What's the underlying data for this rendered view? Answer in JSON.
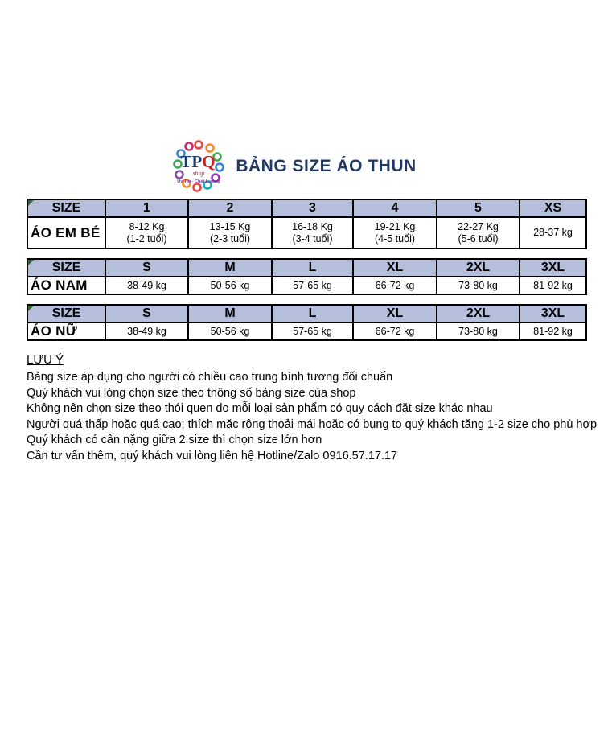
{
  "logo": {
    "brand_tp": "TP",
    "brand_q": "Q",
    "sub": "shop",
    "tagline": "Uy Tín - Chất Lượng"
  },
  "title": "BẢNG SIZE ÁO THUN",
  "tables": [
    {
      "header": [
        "SIZE",
        "1",
        "2",
        "3",
        "4",
        "5",
        "XS"
      ],
      "row_label": "ÁO EM BÉ",
      "cells": [
        [
          "8-12 Kg",
          "(1-2 tuổi)"
        ],
        [
          "13-15 Kg",
          "(2-3 tuổi)"
        ],
        [
          "16-18 Kg",
          "(3-4 tuổi)"
        ],
        [
          "19-21 Kg",
          "(4-5 tuổi)"
        ],
        [
          "22-27 Kg",
          "(5-6 tuổi)"
        ],
        [
          "28-37 kg"
        ]
      ]
    },
    {
      "header": [
        "SIZE",
        "S",
        "M",
        "L",
        "XL",
        "2XL",
        "3XL"
      ],
      "row_label": "ÁO NAM",
      "cells": [
        [
          "38-49 kg"
        ],
        [
          "50-56 kg"
        ],
        [
          "57-65 kg"
        ],
        [
          "66-72 kg"
        ],
        [
          "73-80 kg"
        ],
        [
          "81-92 kg"
        ]
      ]
    },
    {
      "header": [
        "SIZE",
        "S",
        "M",
        "L",
        "XL",
        "2XL",
        "3XL"
      ],
      "row_label": "ÁO NỮ",
      "cells": [
        [
          "38-49 kg"
        ],
        [
          "50-56 kg"
        ],
        [
          "57-65 kg"
        ],
        [
          "66-72 kg"
        ],
        [
          "73-80 kg"
        ],
        [
          "81-92 kg"
        ]
      ]
    }
  ],
  "notes": {
    "heading": "LƯU Ý",
    "lines": [
      "Bảng size áp dụng cho người có chiều cao trung bình tương đối chuẩn",
      "Quý khách vui lòng chọn size theo thông số bảng size của shop",
      "Không nên chọn size theo thói quen do mỗi loại sản phẩm có quy cách đặt size khác nhau",
      "Người quá thấp hoặc quá cao; thích mặc rộng thoải mái hoặc có bụng to quý khách tăng 1-2 size cho phù hợp",
      "Quý khách có cân nặng giữa 2 size thì chọn size lớn hơn",
      "Cần tư vấn thêm, quý khách vui lòng liên hệ Hotline/Zalo 0916.57.17.17"
    ]
  },
  "colors": {
    "title": "#1f3864",
    "table_header_bg": "#b5bfdc",
    "table_border": "#000000",
    "corner_triangle": "#2e6b30",
    "logo_brand_navy": "#1a3a6b",
    "logo_brand_red": "#d21f26",
    "logo_tagline_purple": "#7b3fa0"
  }
}
